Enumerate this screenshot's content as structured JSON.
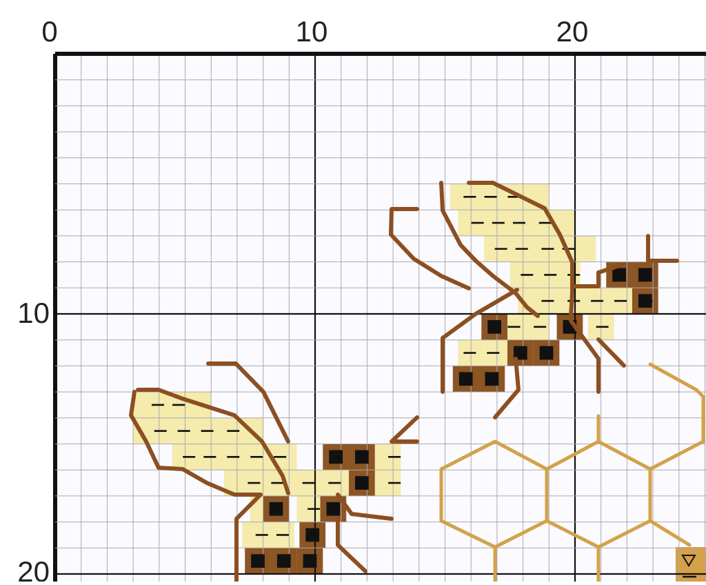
{
  "pattern": {
    "ruler_top": [
      "0",
      "10",
      "20"
    ],
    "ruler_left": [
      "10",
      "20"
    ],
    "colors": {
      "background": "#fbfaff",
      "grid_minor": "#a9a8b0",
      "grid_major": "#111111",
      "wing_fill": "#f4ebad",
      "dash_symbol": "#111111",
      "body_dark_cell": "#8b5524",
      "body_dark_symbol": "#111111",
      "backstitch_brown": "#8c4f22",
      "honeycomb_gold": "#d2a24a",
      "corner_symbol_cell": "#d4a04a"
    },
    "symbols": {
      "dash": "–",
      "square": "■",
      "triangle": "▽"
    },
    "motifs": [
      "bee-upper-right",
      "bee-lower-left",
      "honeycomb"
    ]
  }
}
